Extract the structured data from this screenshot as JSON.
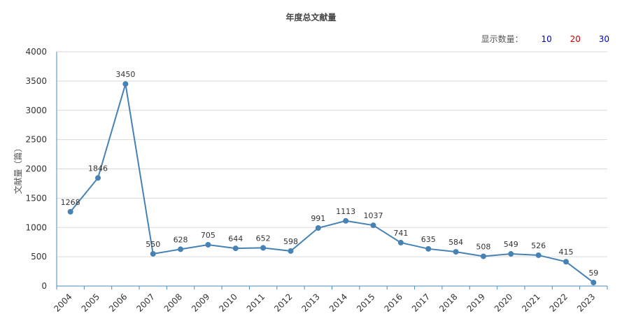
{
  "chart_data": {
    "type": "line",
    "title": "年度总文献量",
    "ylabel": "文献量（篇）",
    "xlabel": "",
    "ylim": [
      0,
      4000
    ],
    "yticks": [
      0,
      500,
      1000,
      1500,
      2000,
      2500,
      3000,
      3500,
      4000
    ],
    "grid": true,
    "categories": [
      "2004",
      "2005",
      "2006",
      "2007",
      "2008",
      "2009",
      "2010",
      "2011",
      "2012",
      "2013",
      "2014",
      "2015",
      "2016",
      "2017",
      "2018",
      "2019",
      "2020",
      "2021",
      "2022",
      "2023"
    ],
    "values": [
      1268,
      1846,
      3450,
      550,
      628,
      705,
      644,
      652,
      598,
      991,
      1113,
      1037,
      741,
      635,
      584,
      508,
      549,
      526,
      415,
      59
    ],
    "line_color": "#4682b4"
  },
  "display_count": {
    "label": "显示数量：",
    "options": [
      {
        "label": "10",
        "color": "#0000cc"
      },
      {
        "label": "20",
        "color": "#cc0000"
      },
      {
        "label": "30",
        "color": "#0000cc"
      }
    ]
  }
}
